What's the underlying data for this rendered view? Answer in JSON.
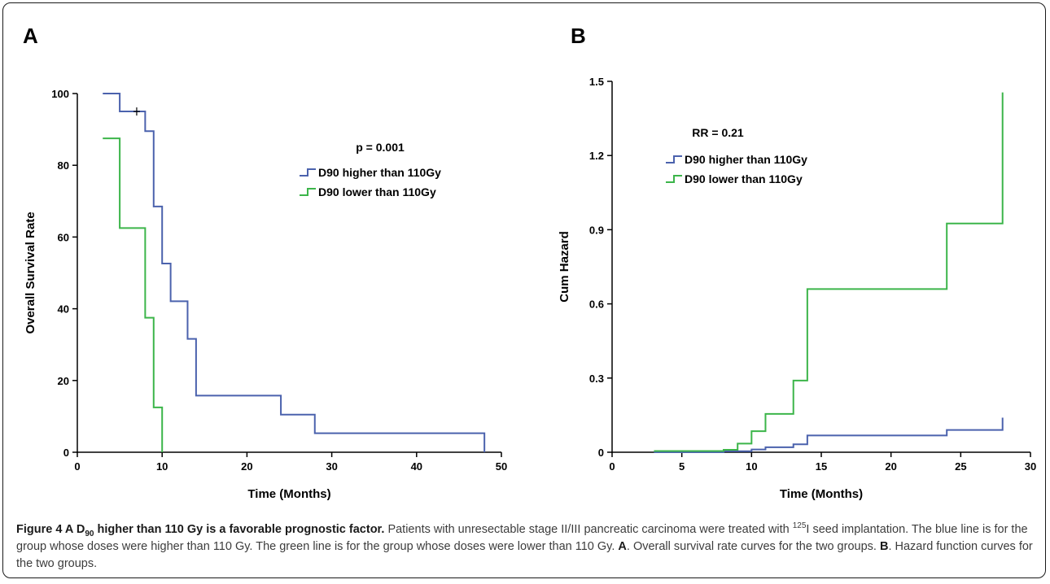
{
  "chart_data": [
    {
      "type": "line",
      "panel_label": "A",
      "xlabel": "Time (Months)",
      "ylabel": "Overall Survival Rate",
      "xlim": [
        0,
        50
      ],
      "ylim": [
        0,
        100
      ],
      "x_ticks": [
        0,
        10,
        20,
        30,
        40,
        50
      ],
      "y_ticks": [
        0,
        20,
        40,
        60,
        80,
        100
      ],
      "annotation": "p = 0.001",
      "legend_position": "upper-right",
      "series": [
        {
          "name": "D90 higher than 110Gy",
          "color": "#4b62ad",
          "x": [
            3,
            5,
            8,
            9,
            10,
            11,
            13,
            14,
            24,
            28,
            48
          ],
          "y": [
            100,
            95,
            89.5,
            68.5,
            52.6,
            42.1,
            31.6,
            15.8,
            10.5,
            5.3,
            0
          ],
          "censored": [
            [
              7,
              95
            ]
          ]
        },
        {
          "name": "D90 lower than 110Gy",
          "color": "#3cb54a",
          "x": [
            3,
            5,
            8,
            9,
            10
          ],
          "y": [
            87.5,
            62.5,
            37.5,
            12.5,
            0
          ],
          "censored": []
        }
      ]
    },
    {
      "type": "line",
      "panel_label": "B",
      "xlabel": "Time (Months)",
      "ylabel": "Cum Hazard",
      "xlim": [
        0,
        30
      ],
      "ylim": [
        0,
        1.5
      ],
      "x_ticks": [
        0,
        5,
        10,
        15,
        20,
        25,
        30
      ],
      "y_ticks": [
        0,
        0.3,
        0.6,
        0.9,
        1.2,
        1.5
      ],
      "annotation": "RR = 0.21",
      "legend_position": "upper-left",
      "series": [
        {
          "name": "D90 higher than 110Gy",
          "color": "#4b62ad",
          "x": [
            3,
            8,
            10,
            11,
            13,
            14,
            24,
            28
          ],
          "y": [
            0,
            0.004,
            0.011,
            0.02,
            0.032,
            0.068,
            0.09,
            0.14
          ]
        },
        {
          "name": "D90 lower than 110Gy",
          "color": "#3cb54a",
          "x": [
            3,
            8,
            9,
            10,
            11,
            13,
            14,
            24,
            28
          ],
          "y": [
            0.005,
            0.01,
            0.035,
            0.085,
            0.155,
            0.29,
            0.66,
            0.925,
            1.455
          ]
        }
      ]
    }
  ],
  "caption": {
    "title_pre": "Figure 4 A D",
    "title_sub": "90",
    "title_post": " higher than 110 Gy is a favorable prognostic factor.",
    "text1": " Patients with unresectable stage II/III pancreatic carcinoma were treated with ",
    "sup": "125",
    "text2": "I seed implantation. The blue line is for the group whose doses were higher than 110 Gy. The green line is for the group whose doses were lower than 110 Gy. ",
    "label_a": "A",
    "text_a": ". Overall survival rate curves for the two groups. ",
    "label_b": "B",
    "text_b": ". Hazard function curves for the two groups."
  }
}
